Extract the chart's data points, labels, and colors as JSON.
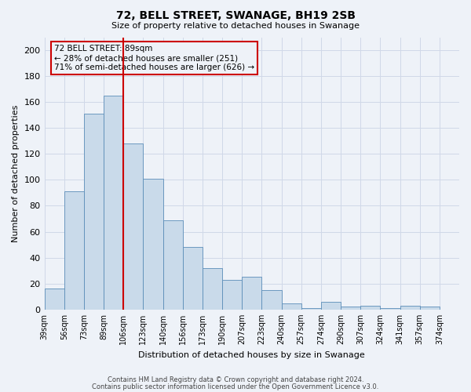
{
  "title": "72, BELL STREET, SWANAGE, BH19 2SB",
  "subtitle": "Size of property relative to detached houses in Swanage",
  "xlabel": "Distribution of detached houses by size in Swanage",
  "ylabel": "Number of detached properties",
  "bar_labels": [
    "39sqm",
    "56sqm",
    "73sqm",
    "89sqm",
    "106sqm",
    "123sqm",
    "140sqm",
    "156sqm",
    "173sqm",
    "190sqm",
    "207sqm",
    "223sqm",
    "240sqm",
    "257sqm",
    "274sqm",
    "290sqm",
    "307sqm",
    "324sqm",
    "341sqm",
    "357sqm",
    "374sqm"
  ],
  "bar_values": [
    16,
    91,
    151,
    165,
    128,
    101,
    69,
    48,
    32,
    23,
    25,
    15,
    5,
    1,
    6,
    2,
    3,
    1,
    3,
    2
  ],
  "bar_color": "#c9daea",
  "bar_edge_color": "#5b8db8",
  "vline_x": 4,
  "vline_color": "#cc0000",
  "annotation_box_text": "72 BELL STREET: 89sqm\n← 28% of detached houses are smaller (251)\n71% of semi-detached houses are larger (626) →",
  "annotation_box_color": "#cc0000",
  "ylim": [
    0,
    210
  ],
  "yticks": [
    0,
    20,
    40,
    60,
    80,
    100,
    120,
    140,
    160,
    180,
    200
  ],
  "grid_color": "#d0d8e8",
  "bg_color": "#eef2f8",
  "footer_line1": "Contains HM Land Registry data © Crown copyright and database right 2024.",
  "footer_line2": "Contains public sector information licensed under the Open Government Licence v3.0."
}
